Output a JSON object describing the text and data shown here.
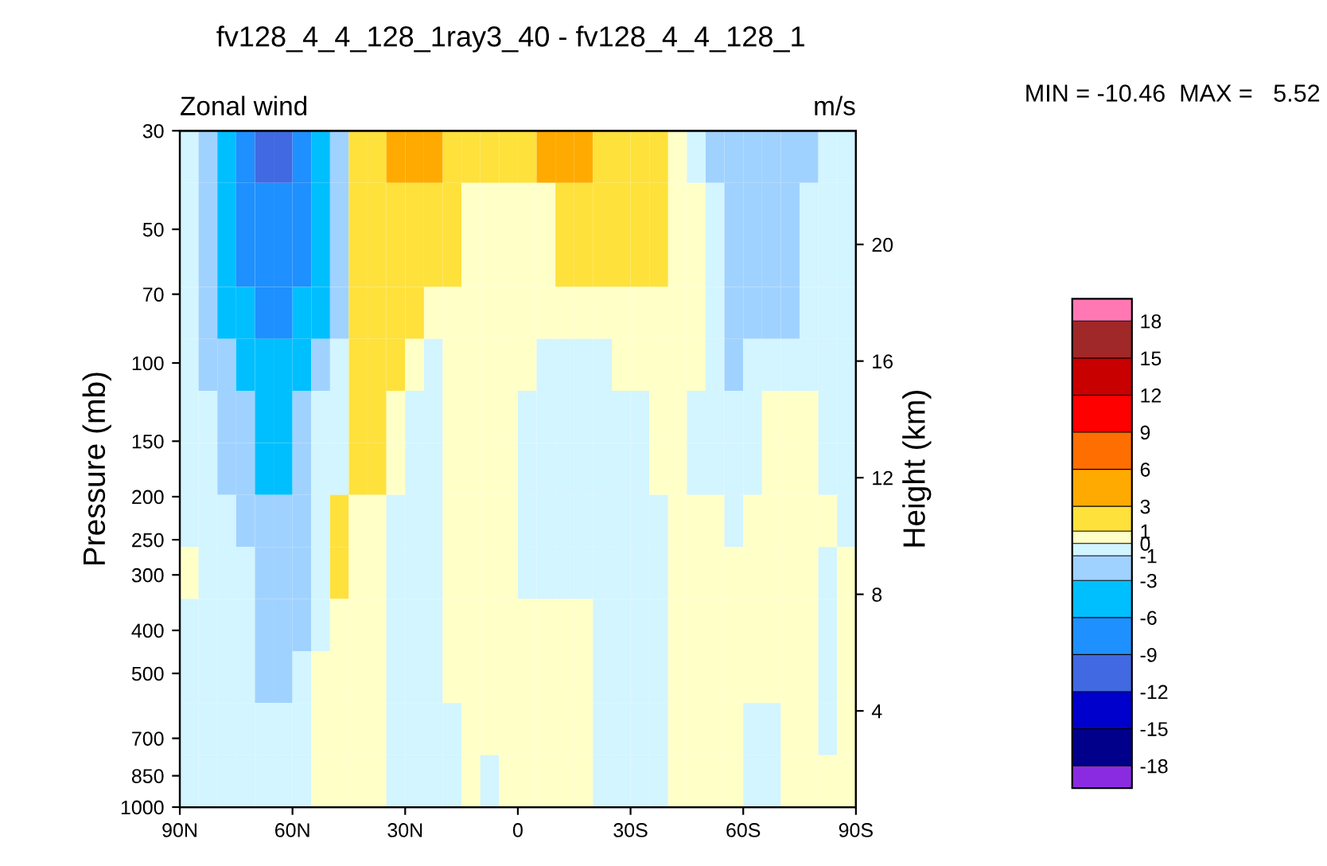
{
  "chart_data": {
    "type": "heatmap",
    "title": "fv128_4_4_128_1ray3_40 - fv128_4_4_128_1",
    "subtitle": "Zonal wind",
    "ylabel": "Pressure (mb)",
    "y2label": "Height (km)",
    "annotations": [
      "m/s",
      "MIN = -10.46  MAX =   5.52"
    ],
    "x": [
      87.5,
      82.5,
      77.5,
      72.5,
      67.5,
      62.5,
      57.5,
      52.5,
      47.5,
      42.5,
      37.5,
      32.5,
      27.5,
      22.5,
      17.5,
      12.5,
      7.5,
      2.5,
      -2.5,
      -7.5,
      -12.5,
      -17.5,
      -22.5,
      -27.5,
      -32.5,
      -37.5,
      -42.5,
      -47.5,
      -52.5,
      -57.5,
      -62.5,
      -67.5,
      -72.5,
      -77.5,
      -82.5,
      -87.5
    ],
    "cells": [
      [
        -0.5,
        -2,
        -4.5,
        -7.5,
        -10.5,
        -10.5,
        -7.5,
        -4.5,
        -2,
        2,
        2,
        4.5,
        4.5,
        4.5,
        2,
        2,
        2,
        2,
        2,
        4.5,
        4.5,
        4.5,
        2,
        2,
        2,
        2,
        0.5,
        -0.5,
        -2,
        -2,
        -2,
        -2,
        -2,
        -2,
        -0.5,
        -0.5
      ],
      [
        -0.5,
        -2,
        -4.5,
        -7.5,
        -7.5,
        -7.5,
        -7.5,
        -4.5,
        -2,
        2,
        2,
        2,
        2,
        2,
        2,
        0.5,
        0.5,
        0.5,
        0.5,
        0.5,
        2,
        2,
        2,
        2,
        2,
        2,
        0.5,
        0.5,
        -0.5,
        -2,
        -2,
        -2,
        -2,
        -0.5,
        -0.5,
        -0.5
      ],
      [
        -0.5,
        -2,
        -4.5,
        -7.5,
        -7.5,
        -7.5,
        -7.5,
        -4.5,
        -2,
        2,
        2,
        2,
        2,
        2,
        2,
        0.5,
        0.5,
        0.5,
        0.5,
        0.5,
        2,
        2,
        2,
        2,
        2,
        2,
        0.5,
        0.5,
        -0.5,
        -2,
        -2,
        -2,
        -2,
        -0.5,
        -0.5,
        -0.5
      ],
      [
        -0.5,
        -2,
        -4.5,
        -4.5,
        -7.5,
        -7.5,
        -4.5,
        -4.5,
        -2,
        2,
        2,
        2,
        2,
        0.5,
        0.5,
        0.5,
        0.5,
        0.5,
        0.5,
        0.5,
        0.5,
        0.5,
        0.5,
        0.5,
        0.5,
        0.5,
        0.5,
        0.5,
        -0.5,
        -2,
        -2,
        -2,
        -2,
        -0.5,
        -0.5,
        -0.5
      ],
      [
        -0.5,
        -2,
        -2,
        -4.5,
        -4.5,
        -4.5,
        -4.5,
        -2,
        -0.5,
        2,
        2,
        2,
        0.5,
        -0.5,
        0.5,
        0.5,
        0.5,
        0.5,
        0.5,
        -0.5,
        -0.5,
        -0.5,
        -0.5,
        0.5,
        0.5,
        0.5,
        0.5,
        0.5,
        -0.5,
        -2,
        -0.5,
        -0.5,
        -0.5,
        -0.5,
        -0.5,
        -0.5
      ],
      [
        -0.5,
        -0.5,
        -2,
        -2,
        -4.5,
        -4.5,
        -2,
        -0.5,
        -0.5,
        2,
        2,
        0.5,
        -0.5,
        -0.5,
        0.5,
        0.5,
        0.5,
        0.5,
        -0.5,
        -0.5,
        -0.5,
        -0.5,
        -0.5,
        -0.5,
        -0.5,
        0.5,
        0.5,
        -0.5,
        -0.5,
        -0.5,
        -0.5,
        0.5,
        0.5,
        0.5,
        -0.5,
        -0.5
      ],
      [
        -0.5,
        -0.5,
        -2,
        -2,
        -4.5,
        -4.5,
        -2,
        -0.5,
        -0.5,
        2,
        2,
        0.5,
        -0.5,
        -0.5,
        0.5,
        0.5,
        0.5,
        0.5,
        -0.5,
        -0.5,
        -0.5,
        -0.5,
        -0.5,
        -0.5,
        -0.5,
        0.5,
        0.5,
        -0.5,
        -0.5,
        -0.5,
        -0.5,
        0.5,
        0.5,
        0.5,
        -0.5,
        -0.5
      ],
      [
        -0.5,
        -0.5,
        -0.5,
        -2,
        -2,
        -2,
        -2,
        -0.5,
        2,
        0.5,
        0.5,
        -0.5,
        -0.5,
        -0.5,
        0.5,
        0.5,
        0.5,
        0.5,
        -0.5,
        -0.5,
        -0.5,
        -0.5,
        -0.5,
        -0.5,
        -0.5,
        -0.5,
        0.5,
        0.5,
        0.5,
        -0.5,
        0.5,
        0.5,
        0.5,
        0.5,
        0.5,
        -0.5
      ],
      [
        0.5,
        -0.5,
        -0.5,
        -0.5,
        -2,
        -2,
        -2,
        -0.5,
        2,
        0.5,
        0.5,
        -0.5,
        -0.5,
        -0.5,
        0.5,
        0.5,
        0.5,
        0.5,
        -0.5,
        -0.5,
        -0.5,
        -0.5,
        -0.5,
        -0.5,
        -0.5,
        -0.5,
        0.5,
        0.5,
        0.5,
        0.5,
        0.5,
        0.5,
        0.5,
        0.5,
        -0.5,
        0.5
      ],
      [
        -0.5,
        -0.5,
        -0.5,
        -0.5,
        -2,
        -2,
        -2,
        -0.5,
        0.5,
        0.5,
        0.5,
        -0.5,
        -0.5,
        -0.5,
        0.5,
        0.5,
        0.5,
        0.5,
        0.5,
        0.5,
        0.5,
        0.5,
        -0.5,
        -0.5,
        -0.5,
        -0.5,
        0.5,
        0.5,
        0.5,
        0.5,
        0.5,
        0.5,
        0.5,
        0.5,
        -0.5,
        0.5
      ],
      [
        -0.5,
        -0.5,
        -0.5,
        -0.5,
        -2,
        -2,
        -0.5,
        0.5,
        0.5,
        0.5,
        0.5,
        -0.5,
        -0.5,
        -0.5,
        0.5,
        0.5,
        0.5,
        0.5,
        0.5,
        0.5,
        0.5,
        0.5,
        -0.5,
        -0.5,
        -0.5,
        -0.5,
        0.5,
        0.5,
        0.5,
        0.5,
        0.5,
        0.5,
        0.5,
        0.5,
        -0.5,
        0.5
      ],
      [
        -0.5,
        -0.5,
        -0.5,
        -0.5,
        -0.5,
        -0.5,
        -0.5,
        0.5,
        0.5,
        0.5,
        0.5,
        -0.5,
        -0.5,
        -0.5,
        -0.5,
        0.5,
        0.5,
        0.5,
        0.5,
        0.5,
        0.5,
        0.5,
        -0.5,
        -0.5,
        -0.5,
        -0.5,
        0.5,
        0.5,
        0.5,
        0.5,
        -0.5,
        -0.5,
        0.5,
        0.5,
        -0.5,
        0.5
      ],
      [
        -0.5,
        -0.5,
        -0.5,
        -0.5,
        -0.5,
        -0.5,
        -0.5,
        0.5,
        0.5,
        0.5,
        0.5,
        -0.5,
        -0.5,
        -0.5,
        -0.5,
        0.5,
        -0.5,
        0.5,
        0.5,
        0.5,
        0.5,
        0.5,
        -0.5,
        -0.5,
        -0.5,
        -0.5,
        0.5,
        0.5,
        0.5,
        0.5,
        -0.5,
        -0.5,
        0.5,
        0.5,
        0.5,
        0.5
      ]
    ],
    "colors": [
      "#8a2be2",
      "#00008b",
      "#0000cd",
      "#4169e1",
      "#1e90ff",
      "#00bfff",
      "#a0d2ff",
      "#d2f5ff",
      "#ffffc8",
      "#ffe13c",
      "#ffaa00",
      "#ff6e00",
      "#ff0000",
      "#c80000",
      "#a02828",
      "#ff78b4"
    ],
    "cticks": [
      -18,
      -15,
      -12,
      -9,
      -6,
      -3,
      -1,
      0,
      1,
      3,
      6,
      9,
      12,
      15,
      18
    ],
    "xlim": [
      90,
      -90
    ],
    "xticks": [
      {
        "value": 90,
        "label": "90N"
      },
      {
        "value": 60,
        "label": "60N"
      },
      {
        "value": 30,
        "label": "30N"
      },
      0,
      {
        "value": -30,
        "label": "30S"
      },
      {
        "value": -60,
        "label": "60S"
      },
      {
        "value": -90,
        "label": "90S"
      }
    ],
    "log": true,
    "ylim": [
      1000,
      30
    ],
    "yticks": [
      30,
      50,
      70,
      100,
      150,
      200,
      250,
      300,
      400,
      500,
      700,
      850,
      1000
    ],
    "y2lim": [
      0.7,
      23.9
    ],
    "y2ticks": [
      4,
      8,
      12,
      16,
      20
    ],
    "grid": false
  }
}
